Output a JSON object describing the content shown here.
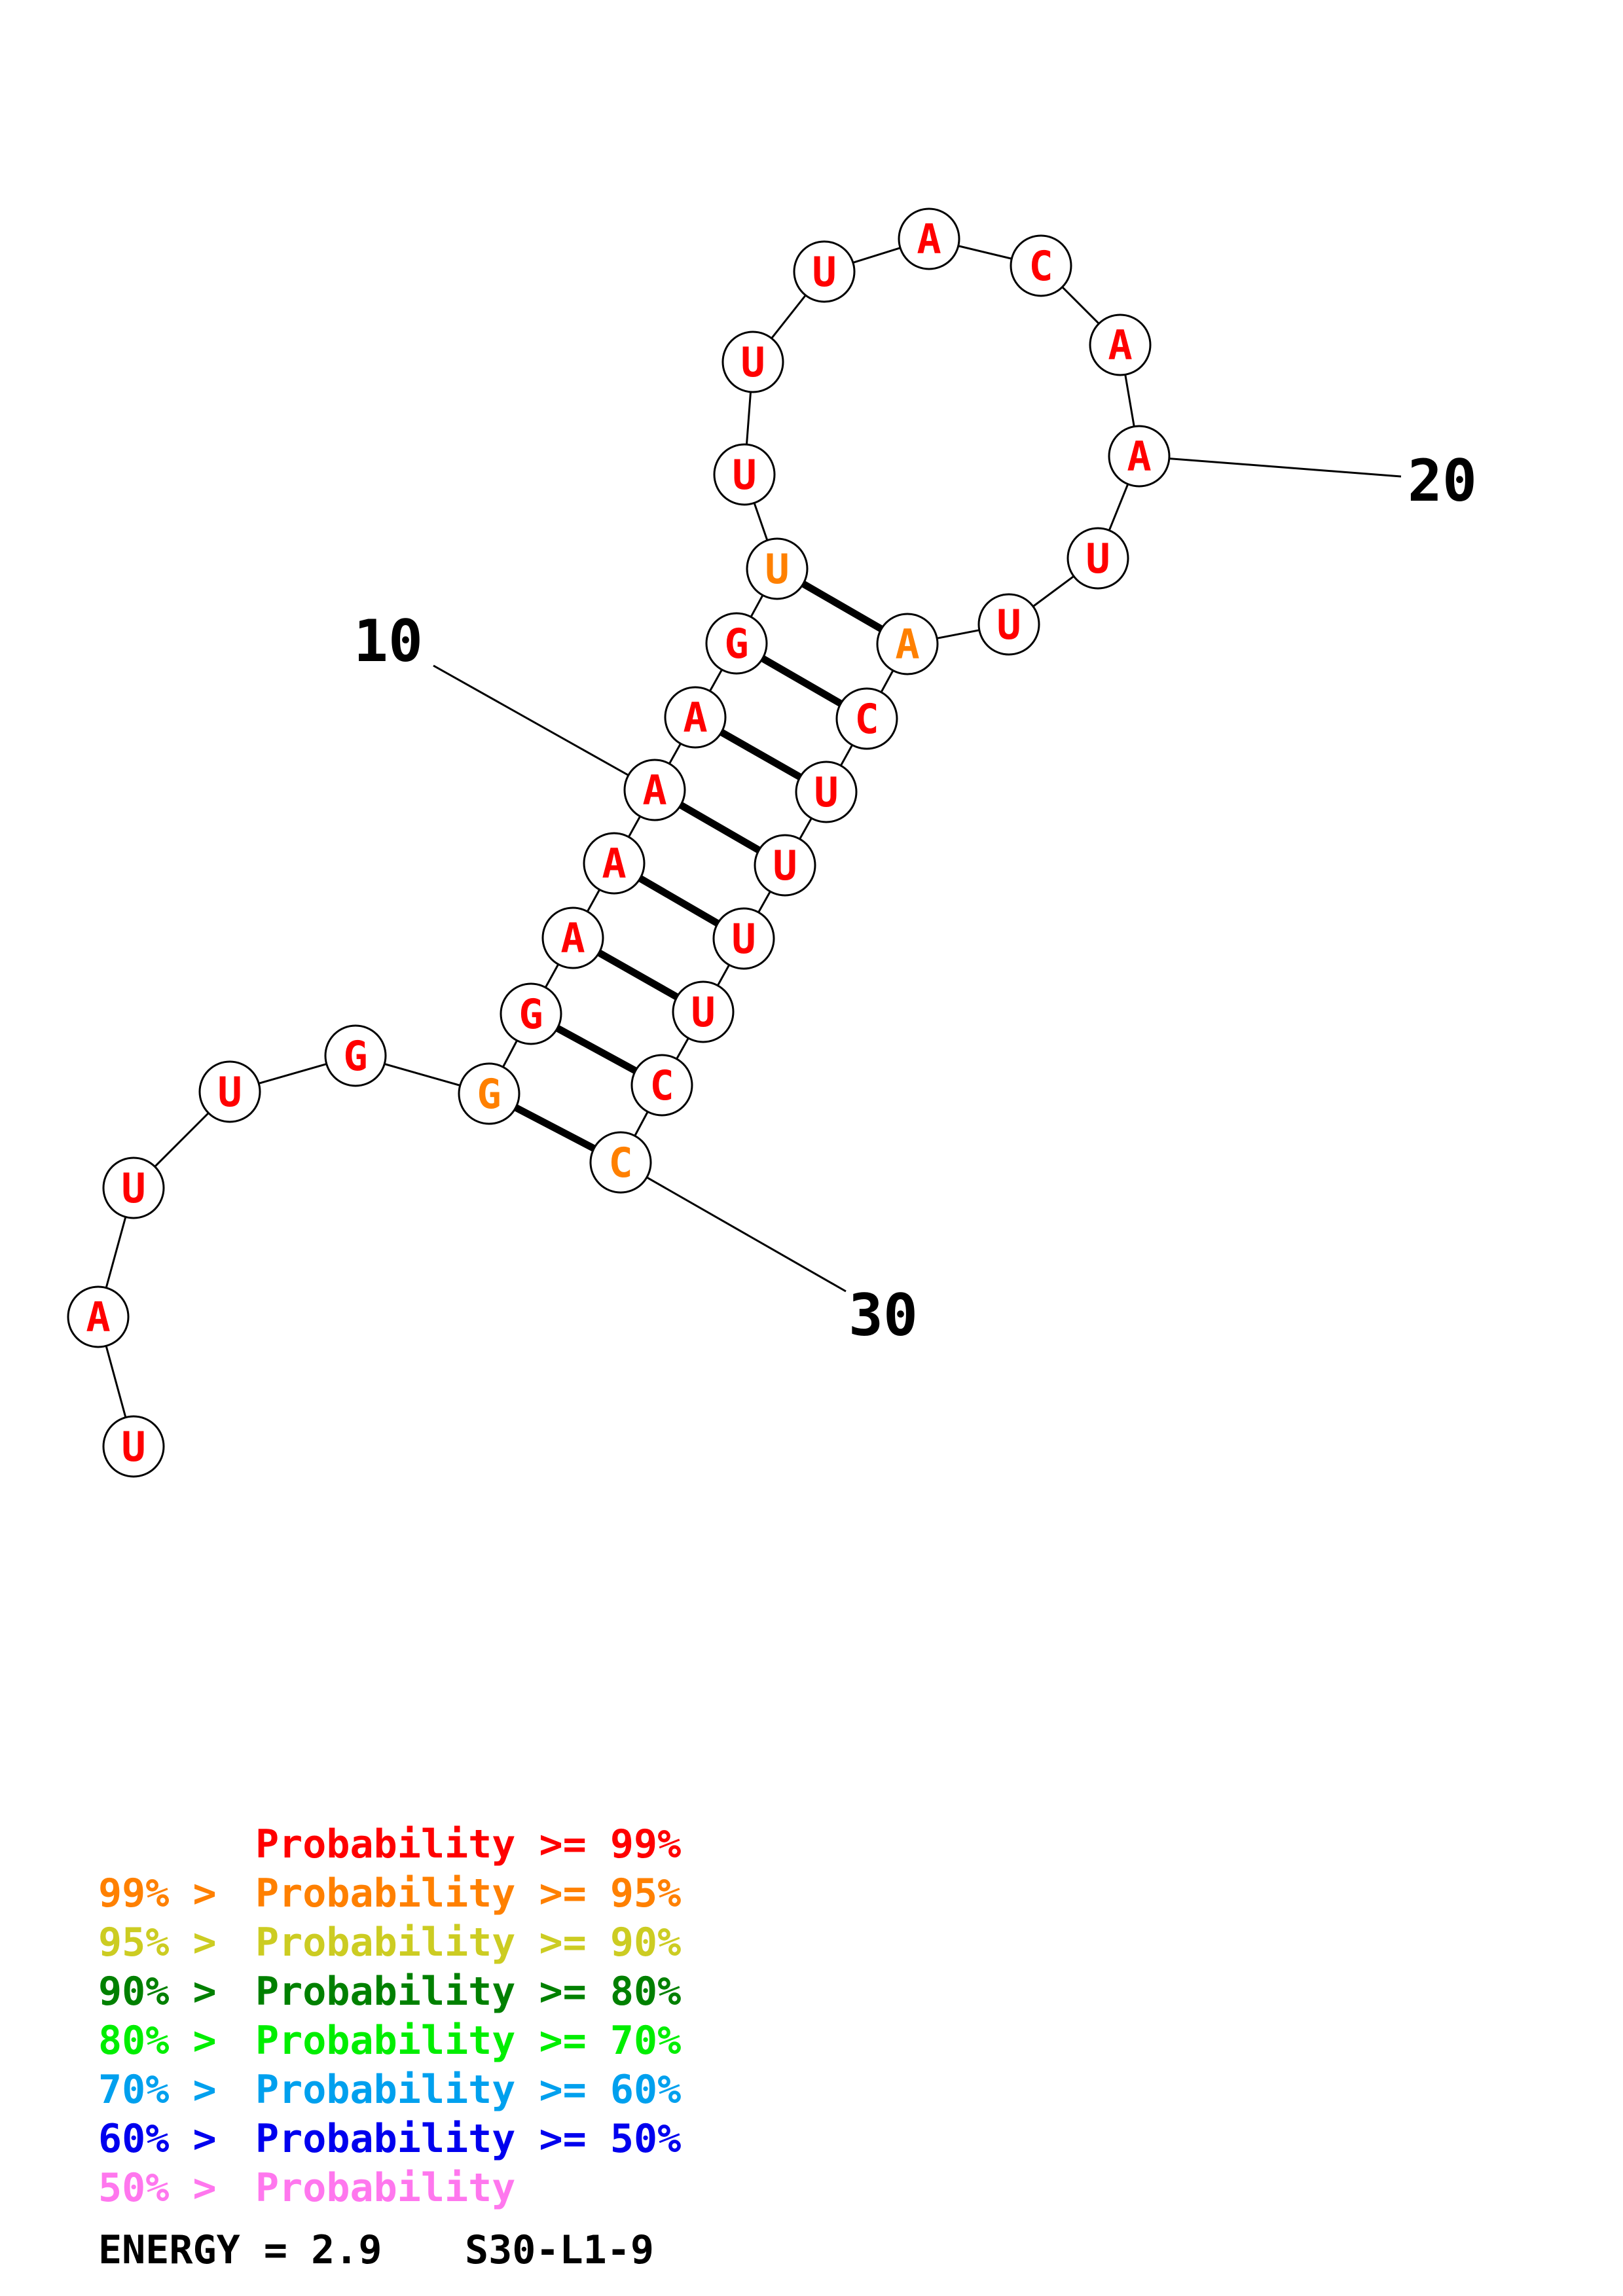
{
  "colors": {
    "p99": "#ff0000",
    "p95": "#ff8000",
    "p90": "#cccc22",
    "p80": "#008000",
    "p70": "#00ee00",
    "p60": "#00a0ee",
    "p50": "#0000ee",
    "plow": "#ff77ee"
  },
  "sequence": [
    {
      "n": 1,
      "base": "U",
      "prob": "p99"
    },
    {
      "n": 2,
      "base": "A",
      "prob": "p99"
    },
    {
      "n": 3,
      "base": "U",
      "prob": "p99"
    },
    {
      "n": 4,
      "base": "U",
      "prob": "p99"
    },
    {
      "n": 5,
      "base": "G",
      "prob": "p99"
    },
    {
      "n": 6,
      "base": "G",
      "prob": "p95"
    },
    {
      "n": 7,
      "base": "G",
      "prob": "p99"
    },
    {
      "n": 8,
      "base": "A",
      "prob": "p99"
    },
    {
      "n": 9,
      "base": "A",
      "prob": "p99"
    },
    {
      "n": 10,
      "base": "A",
      "prob": "p99"
    },
    {
      "n": 11,
      "base": "A",
      "prob": "p99"
    },
    {
      "n": 12,
      "base": "G",
      "prob": "p99"
    },
    {
      "n": 13,
      "base": "U",
      "prob": "p95"
    },
    {
      "n": 14,
      "base": "U",
      "prob": "p99"
    },
    {
      "n": 15,
      "base": "U",
      "prob": "p99"
    },
    {
      "n": 16,
      "base": "U",
      "prob": "p99"
    },
    {
      "n": 17,
      "base": "A",
      "prob": "p99"
    },
    {
      "n": 18,
      "base": "C",
      "prob": "p99"
    },
    {
      "n": 19,
      "base": "A",
      "prob": "p99"
    },
    {
      "n": 20,
      "base": "A",
      "prob": "p99"
    },
    {
      "n": 21,
      "base": "U",
      "prob": "p99"
    },
    {
      "n": 22,
      "base": "U",
      "prob": "p99"
    },
    {
      "n": 23,
      "base": "A",
      "prob": "p95"
    },
    {
      "n": 24,
      "base": "C",
      "prob": "p99"
    },
    {
      "n": 25,
      "base": "U",
      "prob": "p99"
    },
    {
      "n": 26,
      "base": "U",
      "prob": "p99"
    },
    {
      "n": 27,
      "base": "U",
      "prob": "p99"
    },
    {
      "n": 28,
      "base": "U",
      "prob": "p99"
    },
    {
      "n": 29,
      "base": "C",
      "prob": "p99"
    },
    {
      "n": 30,
      "base": "C",
      "prob": "p95"
    }
  ],
  "pairs": [
    [
      6,
      30
    ],
    [
      7,
      29
    ],
    [
      8,
      28
    ],
    [
      9,
      27
    ],
    [
      10,
      26
    ],
    [
      11,
      25
    ],
    [
      12,
      24
    ],
    [
      13,
      23
    ]
  ],
  "index_labels": [
    {
      "n": 10,
      "text": "10"
    },
    {
      "n": 20,
      "text": "20"
    },
    {
      "n": 30,
      "text": "30"
    }
  ],
  "legend": [
    {
      "prefix": "",
      "text": "Probability >= 99%",
      "prob": "p99"
    },
    {
      "prefix": "99% > ",
      "text": "Probability >= 95%",
      "prob": "p95"
    },
    {
      "prefix": "95% > ",
      "text": "Probability >= 90%",
      "prob": "p90"
    },
    {
      "prefix": "90% > ",
      "text": "Probability >= 80%",
      "prob": "p80"
    },
    {
      "prefix": "80% > ",
      "text": "Probability >= 70%",
      "prob": "p70"
    },
    {
      "prefix": "70% > ",
      "text": "Probability >= 60%",
      "prob": "p60"
    },
    {
      "prefix": "60% > ",
      "text": "Probability >= 50%",
      "prob": "p50"
    },
    {
      "prefix": "50% > ",
      "text": "Probability",
      "prob": "plow"
    }
  ],
  "footer": {
    "energy": "ENERGY = 2.9",
    "id": "S30-L1-9"
  }
}
